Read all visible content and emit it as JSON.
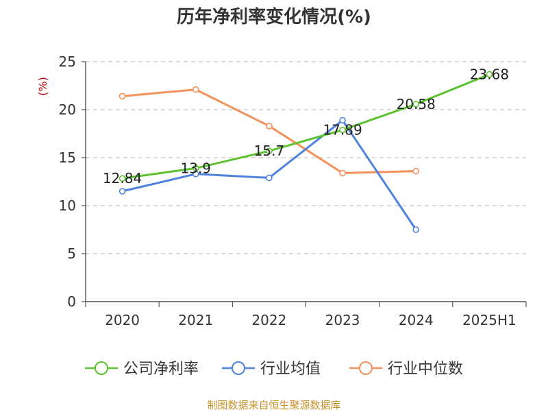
{
  "chart_data": {
    "type": "line",
    "title": "历年净利率变化情况(%)",
    "ylabel": "(%)",
    "xlabel": "",
    "categories": [
      "2020",
      "2021",
      "2022",
      "2023",
      "2024",
      "2025H1"
    ],
    "ylim": [
      0,
      25
    ],
    "yticks": [
      "0",
      "5",
      "10",
      "15",
      "20",
      "25"
    ],
    "grid": true,
    "legend_position": "bottom",
    "series": [
      {
        "name": "公司净利率",
        "color": "#5cc22e",
        "values": [
          12.84,
          13.9,
          15.7,
          17.89,
          20.58,
          23.68
        ],
        "labels": [
          "12.84",
          "13.9",
          "15.7",
          "17.89",
          "20.58",
          "23.68"
        ]
      },
      {
        "name": "行业均值",
        "color": "#4f81de",
        "values": [
          11.5,
          13.3,
          12.9,
          18.9,
          7.5,
          null
        ]
      },
      {
        "name": "行业中位数",
        "color": "#f5905a",
        "values": [
          21.4,
          22.1,
          18.3,
          13.4,
          13.6,
          null
        ]
      }
    ]
  },
  "footer": "制图数据来自恒生聚源数据库"
}
